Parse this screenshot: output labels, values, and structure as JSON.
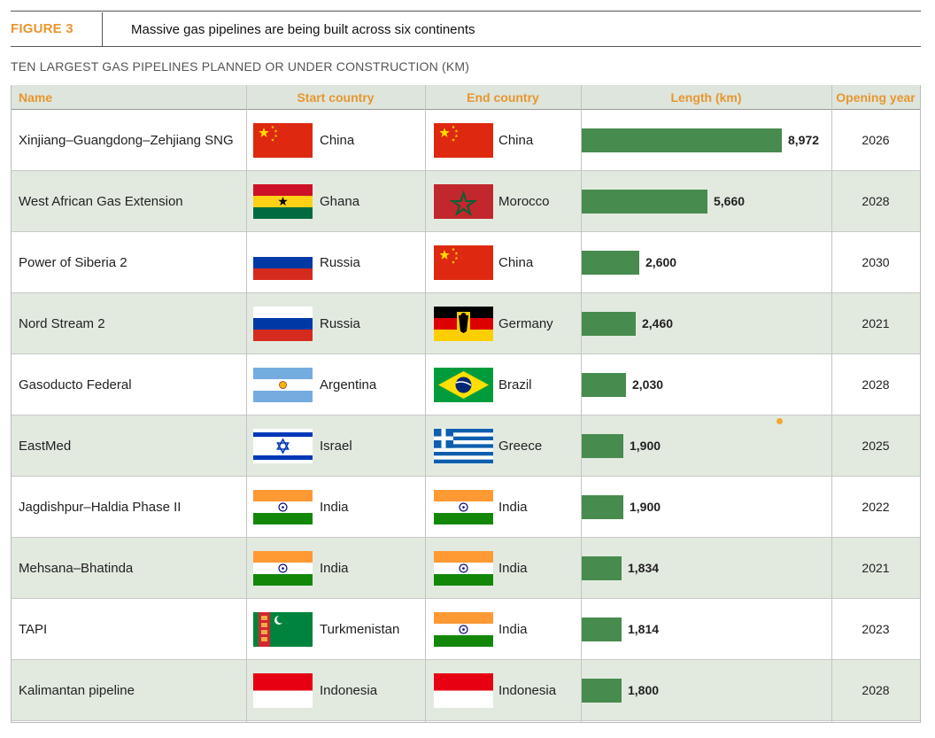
{
  "figure": {
    "label": "FIGURE 3",
    "title": "Massive gas pipelines are being built across six continents",
    "subtitle": "TEN LARGEST GAS PIPELINES PLANNED OR UNDER CONSTRUCTION (KM)"
  },
  "colors": {
    "accent": "#e8962e",
    "bar": "#478b4e",
    "row_alt": "#e2eae0"
  },
  "columns": [
    "Name",
    "Start country",
    "End country",
    "Length (km)",
    "Opening year"
  ],
  "chart_data": {
    "type": "table",
    "title": "TEN LARGEST GAS PIPELINES PLANNED OR UNDER CONSTRUCTION (KM)",
    "columns": [
      "Name",
      "Start country",
      "End country",
      "Length (km)",
      "Opening year"
    ],
    "rows": [
      {
        "name": "Xinjiang–Guangdong–Zehjiang SNG",
        "start": "China",
        "start_flag": "china-flag",
        "end": "China",
        "end_flag": "china-flag",
        "length": 8972,
        "length_label": "8,972",
        "year": "2026"
      },
      {
        "name": "West African Gas Extension",
        "start": "Ghana",
        "start_flag": "ghana-flag",
        "end": "Morocco",
        "end_flag": "morocco-flag",
        "length": 5660,
        "length_label": "5,660",
        "year": "2028"
      },
      {
        "name": "Power of Siberia 2",
        "start": "Russia",
        "start_flag": "russia-flag",
        "end": "China",
        "end_flag": "china-flag",
        "length": 2600,
        "length_label": "2,600",
        "year": "2030"
      },
      {
        "name": "Nord Stream 2",
        "start": "Russia",
        "start_flag": "russia-flag",
        "end": "Germany",
        "end_flag": "germany-flag",
        "length": 2460,
        "length_label": "2,460",
        "year": "2021"
      },
      {
        "name": "Gasoducto Federal",
        "start": "Argentina",
        "start_flag": "argentina-flag",
        "end": "Brazil",
        "end_flag": "brazil-flag",
        "length": 2030,
        "length_label": "2,030",
        "year": "2028"
      },
      {
        "name": "EastMed",
        "start": "Israel",
        "start_flag": "israel-flag",
        "end": "Greece",
        "end_flag": "greece-flag",
        "length": 1900,
        "length_label": "1,900",
        "year": "2025"
      },
      {
        "name": "Jagdishpur–Haldia Phase II",
        "start": "India",
        "start_flag": "india-flag",
        "end": "India",
        "end_flag": "india-flag",
        "length": 1900,
        "length_label": "1,900",
        "year": "2022"
      },
      {
        "name": "Mehsana–Bhatinda",
        "start": "India",
        "start_flag": "india-flag",
        "end": "India",
        "end_flag": "india-flag",
        "length": 1834,
        "length_label": "1,834",
        "year": "2021"
      },
      {
        "name": "TAPI",
        "start": "Turkmenistan",
        "start_flag": "turkmenistan-flag",
        "end": "India",
        "end_flag": "india-flag",
        "length": 1814,
        "length_label": "1,814",
        "year": "2023"
      },
      {
        "name": "Kalimantan pipeline",
        "start": "Indonesia",
        "start_flag": "indonesia-flag",
        "end": "Indonesia",
        "end_flag": "indonesia-flag",
        "length": 1800,
        "length_label": "1,800",
        "year": "2028"
      }
    ],
    "xlim": [
      0,
      9000
    ]
  }
}
